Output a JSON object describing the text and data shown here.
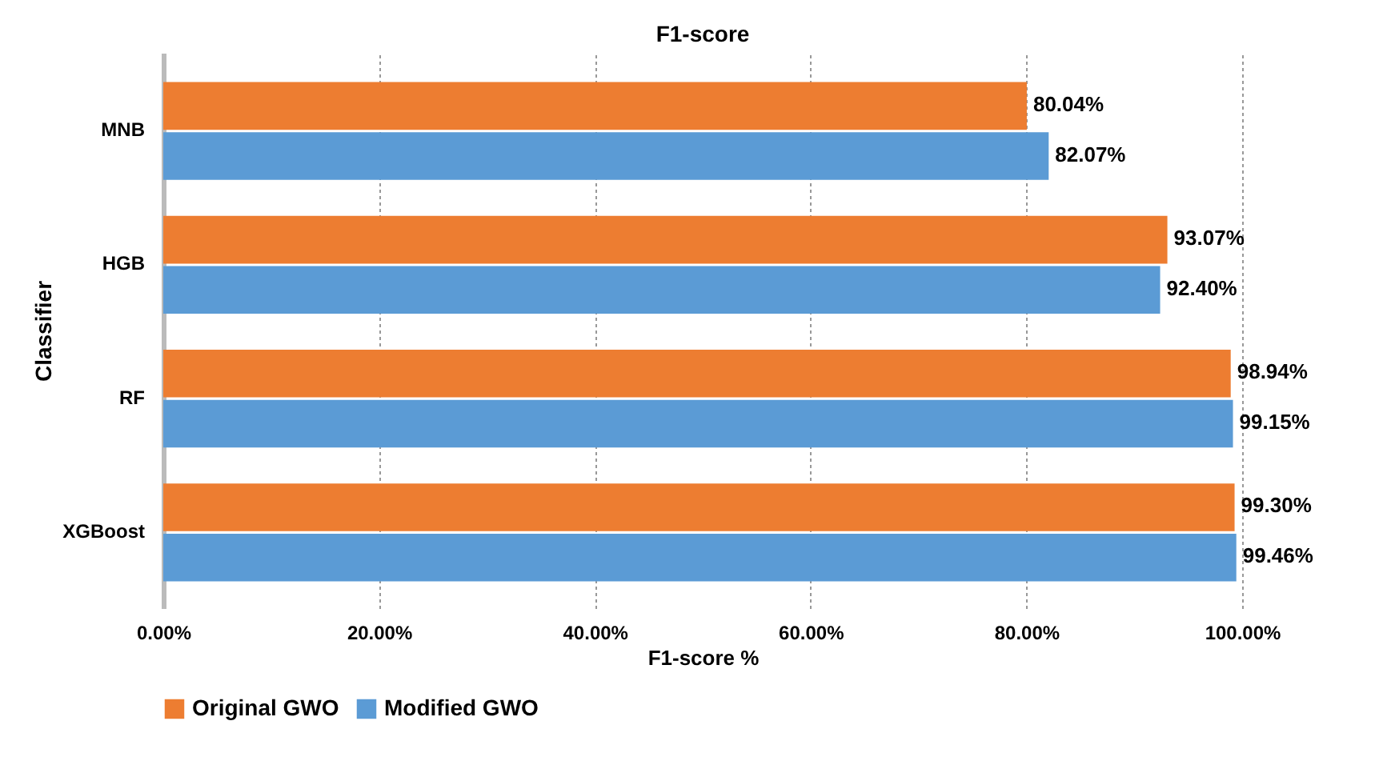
{
  "chart_data": {
    "type": "bar",
    "orientation": "horizontal",
    "title": "F1-score",
    "xlabel": "F1-score %",
    "ylabel": "Classifier",
    "categories": [
      "MNB",
      "HGB",
      "RF",
      "XGBoost"
    ],
    "series": [
      {
        "name": "Original GWO",
        "color": "#ed7d31",
        "values": [
          80.04,
          93.07,
          98.94,
          99.3
        ],
        "value_labels": [
          "80.04%",
          "93.07%",
          "98.94%",
          "99.30%"
        ]
      },
      {
        "name": "Modified GWO",
        "color": "#5b9bd5",
        "values": [
          82.07,
          92.4,
          99.15,
          99.46
        ],
        "value_labels": [
          "82.07%",
          "92.40%",
          "99.15%",
          "99.46%"
        ]
      }
    ],
    "xlim": [
      0,
      100
    ],
    "xticks": [
      {
        "value": 0,
        "label": "0.00%"
      },
      {
        "value": 20,
        "label": "20.00%"
      },
      {
        "value": 40,
        "label": "40.00%"
      },
      {
        "value": 60,
        "label": "60.00%"
      },
      {
        "value": 80,
        "label": "80.00%"
      },
      {
        "value": 100,
        "label": "100.00%"
      }
    ],
    "grid": "x",
    "legend": "bottom"
  }
}
